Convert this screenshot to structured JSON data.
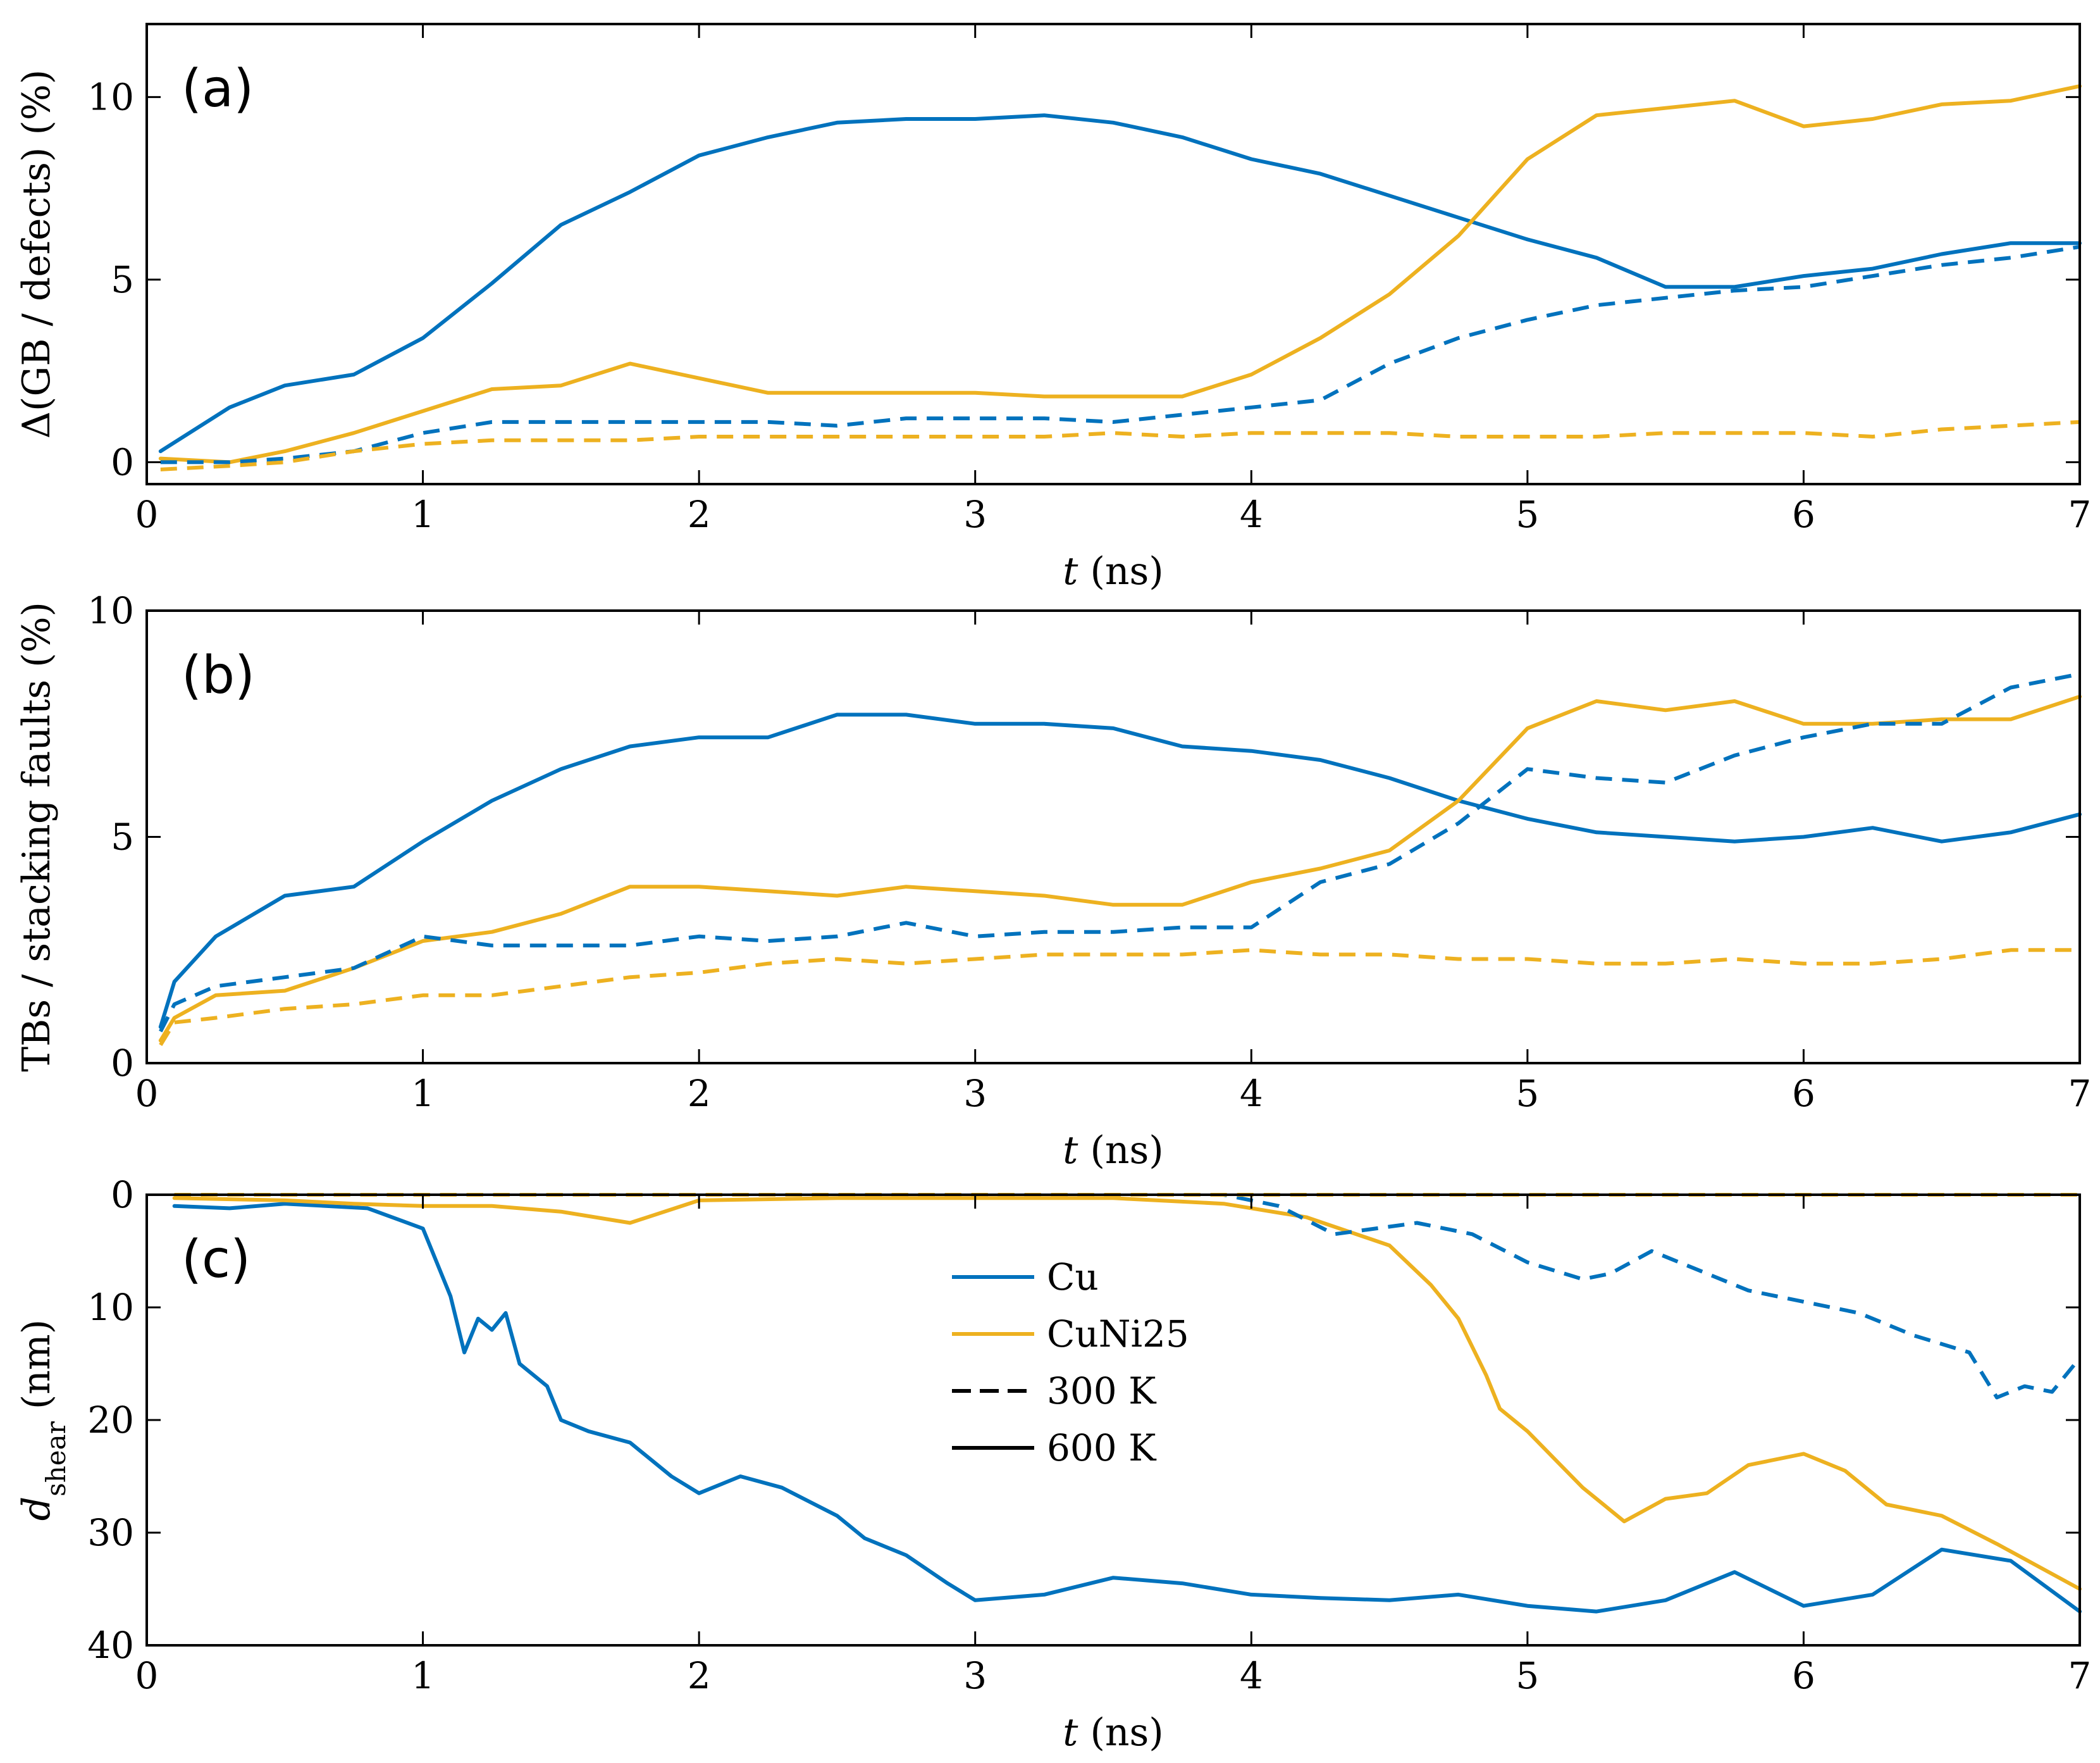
{
  "chart_data": [
    {
      "type": "line",
      "panel_label": "(a)",
      "xlabel": "t",
      "xlabel_unit": "(ns)",
      "ylabel": "Δ(GB / defects) (%)",
      "xlim": [
        0,
        7
      ],
      "ylim": [
        -0.6,
        12
      ],
      "x_ticks": [
        "0",
        "1",
        "2",
        "3",
        "4",
        "5",
        "6",
        "7"
      ],
      "y_ticks": [
        "0",
        "5",
        "10"
      ],
      "y_tick_values": [
        0,
        5,
        10
      ],
      "series": [
        {
          "name": "Cu 600 K",
          "material": "Cu",
          "temperature": "600 K",
          "x": [
            0.05,
            0.3,
            0.5,
            0.75,
            1.0,
            1.25,
            1.5,
            1.75,
            2.0,
            2.25,
            2.5,
            2.75,
            3.0,
            3.25,
            3.5,
            3.75,
            4.0,
            4.25,
            4.5,
            4.75,
            5.0,
            5.25,
            5.5,
            5.75,
            6.0,
            6.25,
            6.5,
            6.75,
            7.0
          ],
          "y": [
            0.3,
            1.5,
            2.1,
            2.4,
            3.4,
            4.9,
            6.5,
            7.4,
            8.4,
            8.9,
            9.3,
            9.4,
            9.4,
            9.5,
            9.3,
            8.9,
            8.3,
            7.9,
            7.3,
            6.7,
            6.1,
            5.6,
            4.8,
            4.8,
            5.1,
            5.3,
            5.7,
            6.0,
            6.0
          ]
        },
        {
          "name": "CuNi25 600 K",
          "material": "CuNi25",
          "temperature": "600 K",
          "x": [
            0.05,
            0.3,
            0.5,
            0.75,
            1.0,
            1.25,
            1.5,
            1.75,
            2.0,
            2.25,
            2.5,
            2.75,
            3.0,
            3.25,
            3.5,
            3.75,
            4.0,
            4.25,
            4.5,
            4.75,
            5.0,
            5.25,
            5.5,
            5.75,
            6.0,
            6.25,
            6.5,
            6.75,
            7.0
          ],
          "y": [
            0.1,
            0.0,
            0.3,
            0.8,
            1.4,
            2.0,
            2.1,
            2.7,
            2.3,
            1.9,
            1.9,
            1.9,
            1.9,
            1.8,
            1.8,
            1.8,
            2.4,
            3.4,
            4.6,
            6.2,
            8.3,
            9.5,
            9.7,
            9.9,
            9.2,
            9.4,
            9.8,
            9.9,
            10.3
          ]
        },
        {
          "name": "Cu 300 K",
          "material": "Cu",
          "temperature": "300 K",
          "x": [
            0.05,
            0.3,
            0.5,
            0.75,
            1.0,
            1.25,
            1.5,
            1.75,
            2.0,
            2.25,
            2.5,
            2.75,
            3.0,
            3.25,
            3.5,
            3.75,
            4.0,
            4.25,
            4.5,
            4.75,
            5.0,
            5.25,
            5.5,
            5.75,
            6.0,
            6.25,
            6.5,
            6.75,
            7.0
          ],
          "y": [
            0.0,
            0.0,
            0.1,
            0.3,
            0.8,
            1.1,
            1.1,
            1.1,
            1.1,
            1.1,
            1.0,
            1.2,
            1.2,
            1.2,
            1.1,
            1.3,
            1.5,
            1.7,
            2.7,
            3.4,
            3.9,
            4.3,
            4.5,
            4.7,
            4.8,
            5.1,
            5.4,
            5.6,
            5.9
          ]
        },
        {
          "name": "CuNi25 300 K",
          "material": "CuNi25",
          "temperature": "300 K",
          "x": [
            0.05,
            0.3,
            0.5,
            0.75,
            1.0,
            1.25,
            1.5,
            1.75,
            2.0,
            2.25,
            2.5,
            2.75,
            3.0,
            3.25,
            3.5,
            3.75,
            4.0,
            4.25,
            4.5,
            4.75,
            5.0,
            5.25,
            5.5,
            5.75,
            6.0,
            6.25,
            6.5,
            6.75,
            7.0
          ],
          "y": [
            -0.2,
            -0.1,
            0.0,
            0.3,
            0.5,
            0.6,
            0.6,
            0.6,
            0.7,
            0.7,
            0.7,
            0.7,
            0.7,
            0.7,
            0.8,
            0.7,
            0.8,
            0.8,
            0.8,
            0.7,
            0.7,
            0.7,
            0.8,
            0.8,
            0.8,
            0.7,
            0.9,
            1.0,
            1.1
          ]
        }
      ]
    },
    {
      "type": "line",
      "panel_label": "(b)",
      "xlabel": "t",
      "xlabel_unit": "(ns)",
      "ylabel": "TBs / stacking faults (%)",
      "xlim": [
        0,
        7
      ],
      "ylim": [
        0,
        10
      ],
      "x_ticks": [
        "0",
        "1",
        "2",
        "3",
        "4",
        "5",
        "6",
        "7"
      ],
      "y_ticks": [
        "0",
        "5",
        "10"
      ],
      "y_tick_values": [
        0,
        5,
        10
      ],
      "series": [
        {
          "name": "Cu 600 K",
          "material": "Cu",
          "temperature": "600 K",
          "x": [
            0.05,
            0.1,
            0.25,
            0.5,
            0.75,
            1.0,
            1.25,
            1.5,
            1.75,
            2.0,
            2.25,
            2.5,
            2.75,
            3.0,
            3.25,
            3.5,
            3.75,
            4.0,
            4.25,
            4.5,
            4.75,
            5.0,
            5.25,
            5.5,
            5.75,
            6.0,
            6.25,
            6.5,
            6.75,
            7.0
          ],
          "y": [
            0.8,
            1.8,
            2.8,
            3.7,
            3.9,
            4.9,
            5.8,
            6.5,
            7.0,
            7.2,
            7.2,
            7.7,
            7.7,
            7.5,
            7.5,
            7.4,
            7.0,
            6.9,
            6.7,
            6.3,
            5.8,
            5.4,
            5.1,
            5.0,
            4.9,
            5.0,
            5.2,
            4.9,
            5.1,
            5.5
          ]
        },
        {
          "name": "CuNi25 600 K",
          "material": "CuNi25",
          "temperature": "600 K",
          "x": [
            0.05,
            0.1,
            0.25,
            0.5,
            0.75,
            1.0,
            1.25,
            1.5,
            1.75,
            2.0,
            2.25,
            2.5,
            2.75,
            3.0,
            3.25,
            3.5,
            3.75,
            4.0,
            4.25,
            4.5,
            4.75,
            5.0,
            5.25,
            5.5,
            5.75,
            6.0,
            6.25,
            6.5,
            6.75,
            7.0
          ],
          "y": [
            0.5,
            1.0,
            1.5,
            1.6,
            2.1,
            2.7,
            2.9,
            3.3,
            3.9,
            3.9,
            3.8,
            3.7,
            3.9,
            3.8,
            3.7,
            3.5,
            3.5,
            4.0,
            4.3,
            4.7,
            5.8,
            7.4,
            8.0,
            7.8,
            8.0,
            7.5,
            7.5,
            7.6,
            7.6,
            8.1
          ]
        },
        {
          "name": "Cu 300 K",
          "material": "Cu",
          "temperature": "300 K",
          "x": [
            0.05,
            0.1,
            0.25,
            0.5,
            0.75,
            1.0,
            1.25,
            1.5,
            1.75,
            2.0,
            2.25,
            2.5,
            2.75,
            3.0,
            3.25,
            3.5,
            3.75,
            4.0,
            4.25,
            4.5,
            4.75,
            5.0,
            5.25,
            5.5,
            5.75,
            6.0,
            6.25,
            6.5,
            6.75,
            7.0
          ],
          "y": [
            0.7,
            1.3,
            1.7,
            1.9,
            2.1,
            2.8,
            2.6,
            2.6,
            2.6,
            2.8,
            2.7,
            2.8,
            3.1,
            2.8,
            2.9,
            2.9,
            3.0,
            3.0,
            4.0,
            4.4,
            5.3,
            6.5,
            6.3,
            6.2,
            6.8,
            7.2,
            7.5,
            7.5,
            8.3,
            8.6
          ]
        },
        {
          "name": "CuNi25 300 K",
          "material": "CuNi25",
          "temperature": "300 K",
          "x": [
            0.05,
            0.1,
            0.25,
            0.5,
            0.75,
            1.0,
            1.25,
            1.5,
            1.75,
            2.0,
            2.25,
            2.5,
            2.75,
            3.0,
            3.25,
            3.5,
            3.75,
            4.0,
            4.25,
            4.5,
            4.75,
            5.0,
            5.25,
            5.5,
            5.75,
            6.0,
            6.25,
            6.5,
            6.75,
            7.0
          ],
          "y": [
            0.4,
            0.9,
            1.0,
            1.2,
            1.3,
            1.5,
            1.5,
            1.7,
            1.9,
            2.0,
            2.2,
            2.3,
            2.2,
            2.3,
            2.4,
            2.4,
            2.4,
            2.5,
            2.4,
            2.4,
            2.3,
            2.3,
            2.2,
            2.2,
            2.3,
            2.2,
            2.2,
            2.3,
            2.5,
            2.5
          ]
        }
      ]
    },
    {
      "type": "line",
      "panel_label": "(c)",
      "xlabel": "t",
      "xlabel_unit": "(ns)",
      "ylabel": "d",
      "ylabel_subscript": "shear",
      "ylabel_unit": "(nm)",
      "xlim": [
        0,
        7
      ],
      "ylim": [
        0,
        40
      ],
      "y_reversed": true,
      "x_ticks": [
        "0",
        "1",
        "2",
        "3",
        "4",
        "5",
        "6",
        "7"
      ],
      "y_ticks": [
        "0",
        "10",
        "20",
        "30",
        "40"
      ],
      "y_tick_values": [
        0,
        10,
        20,
        30,
        40
      ],
      "legend": {
        "position": "upper-center",
        "entries": [
          {
            "label": "Cu",
            "color_key": "Cu",
            "style": "solid"
          },
          {
            "label": "CuNi25",
            "color_key": "CuNi25",
            "style": "solid"
          },
          {
            "label": "300 K",
            "color_key": "black",
            "style": "dashed"
          },
          {
            "label": "600 K",
            "color_key": "black",
            "style": "solid"
          }
        ]
      },
      "series": [
        {
          "name": "Cu 600 K",
          "material": "Cu",
          "temperature": "600 K",
          "x": [
            0.1,
            0.3,
            0.5,
            0.8,
            1.0,
            1.05,
            1.1,
            1.15,
            1.2,
            1.25,
            1.3,
            1.35,
            1.45,
            1.5,
            1.6,
            1.75,
            1.9,
            2.0,
            2.15,
            2.3,
            2.5,
            2.6,
            2.75,
            2.9,
            3.0,
            3.25,
            3.5,
            3.75,
            4.0,
            4.25,
            4.5,
            4.75,
            5.0,
            5.25,
            5.5,
            5.75,
            6.0,
            6.25,
            6.5,
            6.75,
            7.0
          ],
          "y": [
            1.0,
            1.2,
            0.8,
            1.2,
            3.0,
            6.0,
            9.0,
            14.0,
            11.0,
            12.0,
            10.5,
            15.0,
            17.0,
            20.0,
            21.0,
            22.0,
            25.0,
            26.5,
            25.0,
            26.0,
            28.5,
            30.5,
            32.0,
            34.5,
            36.0,
            35.5,
            34.0,
            34.5,
            35.5,
            35.8,
            36.0,
            35.5,
            36.5,
            37.0,
            36.0,
            33.5,
            36.5,
            35.5,
            31.5,
            32.5,
            37.0
          ]
        },
        {
          "name": "CuNi25 600 K",
          "material": "CuNi25",
          "temperature": "600 K",
          "x": [
            0.1,
            0.5,
            0.75,
            1.0,
            1.25,
            1.5,
            1.75,
            2.0,
            2.5,
            3.0,
            3.5,
            3.9,
            4.2,
            4.5,
            4.65,
            4.75,
            4.85,
            4.9,
            5.0,
            5.1,
            5.2,
            5.35,
            5.5,
            5.65,
            5.8,
            6.0,
            6.15,
            6.3,
            6.5,
            6.7,
            6.85,
            7.0
          ],
          "y": [
            0.3,
            0.5,
            0.8,
            1.0,
            1.0,
            1.5,
            2.5,
            0.5,
            0.3,
            0.3,
            0.3,
            0.8,
            2.0,
            4.5,
            8.0,
            11.0,
            16.0,
            19.0,
            21.0,
            23.5,
            26.0,
            29.0,
            27.0,
            26.5,
            24.0,
            23.0,
            24.5,
            27.5,
            28.5,
            31.0,
            33.0,
            35.0
          ]
        },
        {
          "name": "Cu 300 K",
          "material": "Cu",
          "temperature": "300 K",
          "x": [
            0.1,
            1.0,
            2.0,
            3.0,
            3.9,
            4.1,
            4.3,
            4.6,
            4.8,
            5.0,
            5.2,
            5.3,
            5.45,
            5.6,
            5.8,
            6.0,
            6.2,
            6.4,
            6.6,
            6.7,
            6.8,
            6.9,
            7.0
          ],
          "y": [
            0.0,
            0.0,
            0.0,
            0.0,
            0.0,
            1.0,
            3.5,
            2.5,
            3.5,
            6.0,
            7.5,
            7.0,
            5.0,
            6.5,
            8.5,
            9.5,
            10.5,
            12.5,
            14.0,
            18.0,
            17.0,
            17.5,
            14.5
          ]
        },
        {
          "name": "CuNi25 300 K",
          "material": "CuNi25",
          "temperature": "300 K",
          "x": [
            0.1,
            1.0,
            2.0,
            3.0,
            4.0,
            5.0,
            6.0,
            7.0
          ],
          "y": [
            0.0,
            0.0,
            0.0,
            0.0,
            0.0,
            0.0,
            0.0,
            0.0
          ]
        }
      ]
    }
  ],
  "colors": {
    "Cu": "#0072bd",
    "CuNi25": "#edb120",
    "black": "#000000"
  }
}
